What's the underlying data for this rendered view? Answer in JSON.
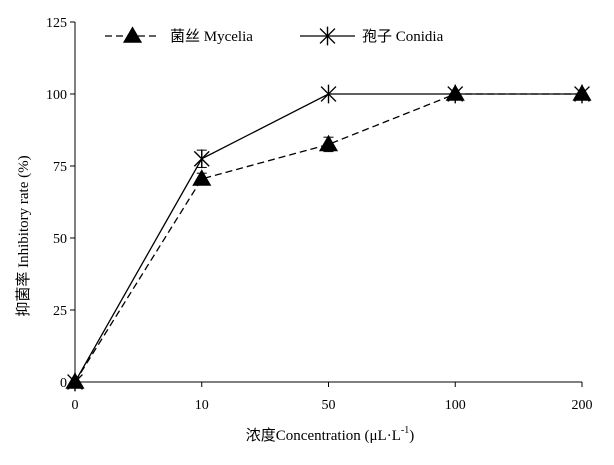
{
  "chart_data": {
    "type": "line",
    "title": "",
    "xlabel": "浓度Concentration (μL·L",
    "xlabel_sup": "-1",
    "xlabel_close": ")",
    "ylabel": "抑菌率 Inhibitory rate (%)",
    "categories": [
      "0",
      "10",
      "50",
      "100",
      "200"
    ],
    "ylim": [
      0,
      125
    ],
    "yticks": [
      "0",
      "25",
      "50",
      "75",
      "100",
      "125"
    ],
    "ytick_values": [
      0,
      25,
      50,
      75,
      100,
      125
    ],
    "legend_position": "top-left",
    "series": [
      {
        "name": "菌丝 Mycelia",
        "marker": "triangle",
        "line": "dashed",
        "values": [
          0,
          70.5,
          82.5,
          100,
          100
        ],
        "errors": [
          0,
          2,
          2.5,
          0,
          0
        ]
      },
      {
        "name": "孢子 Conidia",
        "marker": "star",
        "line": "solid",
        "values": [
          0,
          77.5,
          100,
          100,
          100
        ],
        "errors": [
          0,
          3,
          0,
          0,
          0
        ]
      }
    ]
  }
}
